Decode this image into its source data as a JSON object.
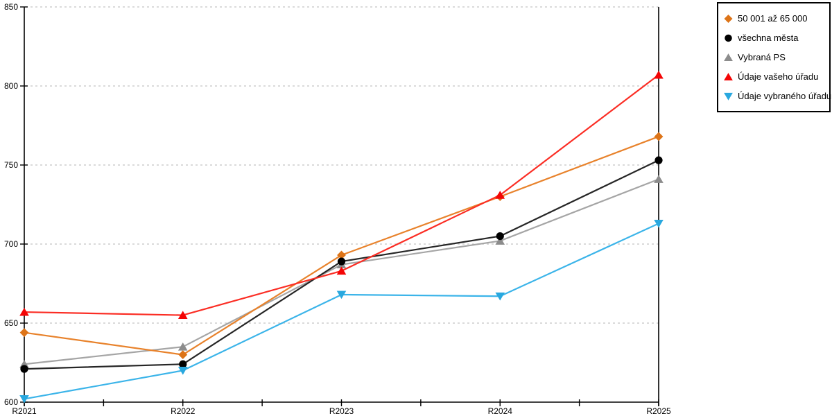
{
  "chart_data": {
    "type": "line",
    "title": "",
    "xlabel": "",
    "ylabel": "",
    "categories": [
      "R2021",
      "R2022",
      "R2023",
      "R2024",
      "R2025"
    ],
    "ylim": [
      600,
      850
    ],
    "yticks": [
      600,
      650,
      700,
      750,
      800,
      850
    ],
    "grid": true,
    "legend_position": "top-right",
    "series": [
      {
        "name": "50 001 až 65 000",
        "marker": "diamond",
        "color": "#DD7418",
        "line_color": "#E8822B",
        "values": [
          644,
          630,
          693,
          730,
          768
        ]
      },
      {
        "name": "všechna města",
        "marker": "circle",
        "color": "#000000",
        "line_color": "#262626",
        "values": [
          621,
          624,
          689,
          705,
          753
        ]
      },
      {
        "name": "Vybraná PS",
        "marker": "triangle-up",
        "color": "#8C8C8C",
        "line_color": "#A5A5A5",
        "values": [
          624,
          635,
          687,
          702,
          741
        ]
      },
      {
        "name": "Údaje vašeho úřadu",
        "marker": "triangle-up",
        "color": "#F40505",
        "line_color": "#FB2D24",
        "values": [
          657,
          655,
          683,
          731,
          807
        ]
      },
      {
        "name": "Údaje vybraného úřadu",
        "marker": "triangle-down",
        "color": "#29A8DF",
        "line_color": "#3BB4E9",
        "values": [
          602,
          620,
          668,
          667,
          713
        ]
      }
    ],
    "axis_color": "#000000",
    "grid_color": "#C4C4C4",
    "background": "#FFFFFF"
  }
}
